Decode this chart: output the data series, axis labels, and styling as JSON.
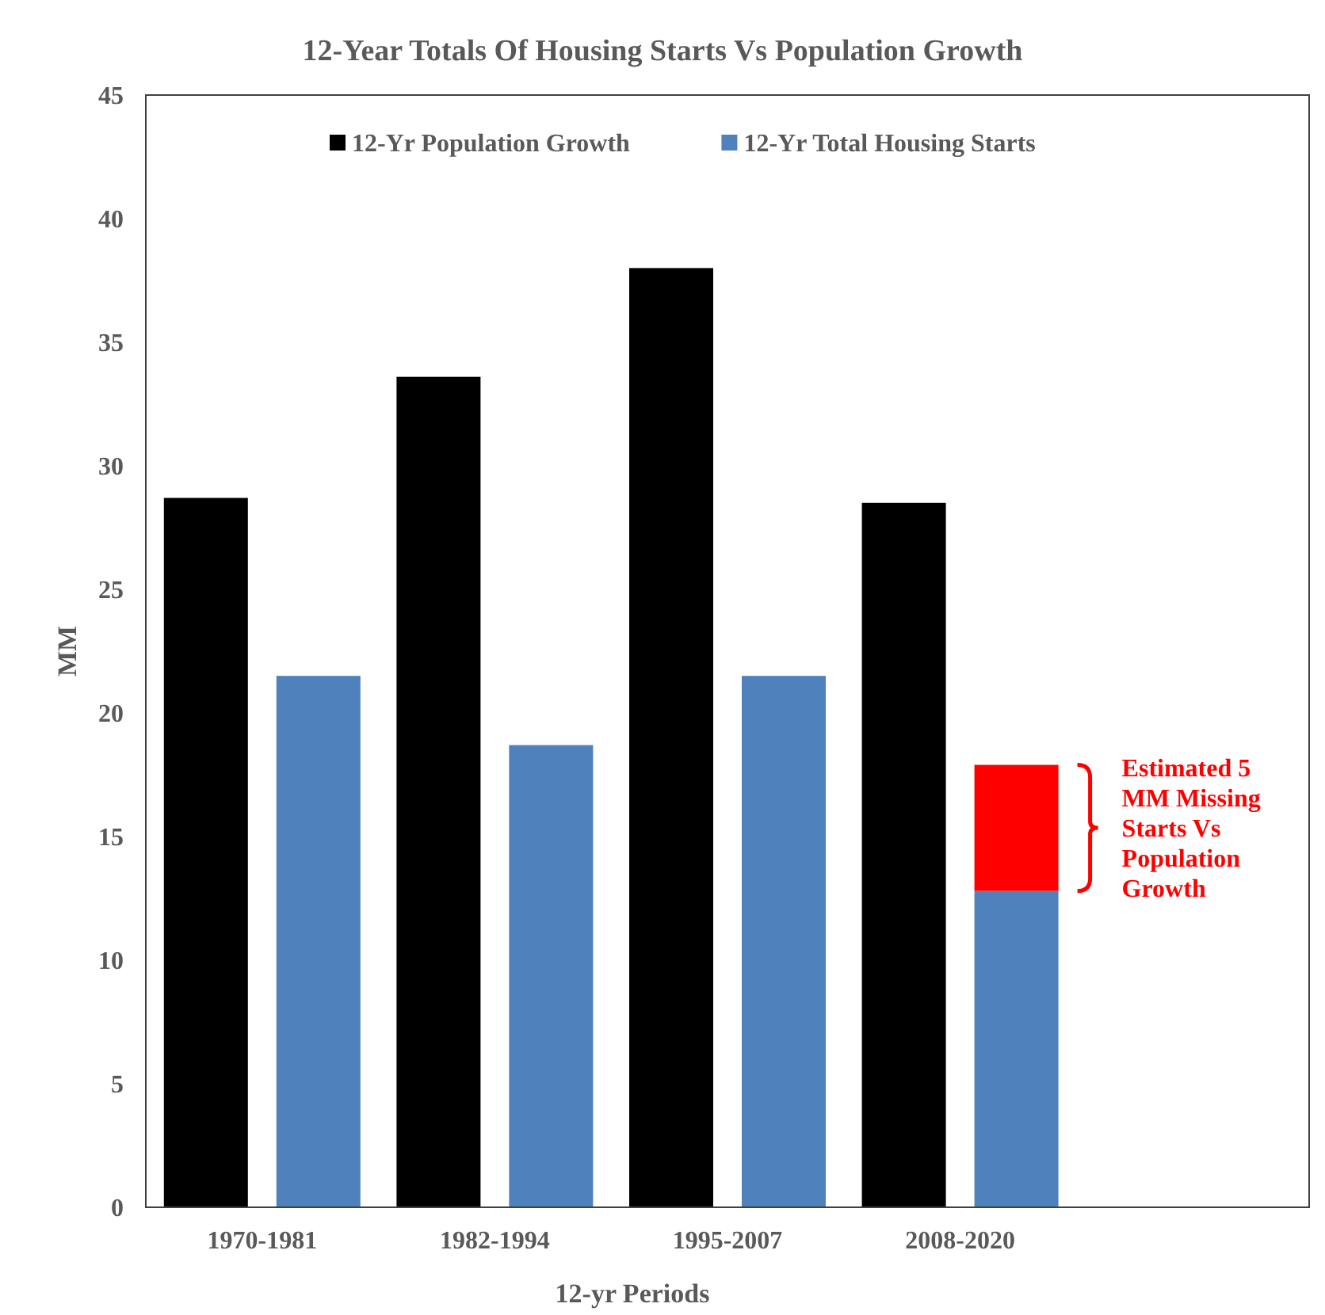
{
  "chart_data": {
    "type": "bar",
    "title": "12-Year Totals Of Housing Starts Vs Population Growth",
    "xlabel": "12-yr Periods",
    "ylabel": "MM",
    "categories": [
      "1970-1981",
      "1982-1994",
      "1995-2007",
      "2008-2020",
      null
    ],
    "series": [
      {
        "name": "12-Yr Population Growth",
        "color": "#000000",
        "values": [
          28.7,
          33.6,
          38.0,
          28.5,
          null
        ]
      },
      {
        "name": "12-Yr Total Housing Starts",
        "color": "#4f81bd",
        "values": [
          21.5,
          18.7,
          21.5,
          12.8,
          null
        ]
      },
      {
        "color": "#ff0000",
        "values": [
          null,
          null,
          null,
          5.1,
          null
        ],
        "base": [
          null,
          null,
          null,
          12.8,
          null
        ]
      }
    ],
    "annotations": [
      "Estimated 5 MM Missing Starts Vs Population Growth"
    ],
    "ylim": [
      0,
      45
    ],
    "yticks": [
      0,
      5,
      10,
      15,
      20,
      25,
      30,
      35,
      40,
      45
    ],
    "grid": false,
    "legend": "top"
  }
}
